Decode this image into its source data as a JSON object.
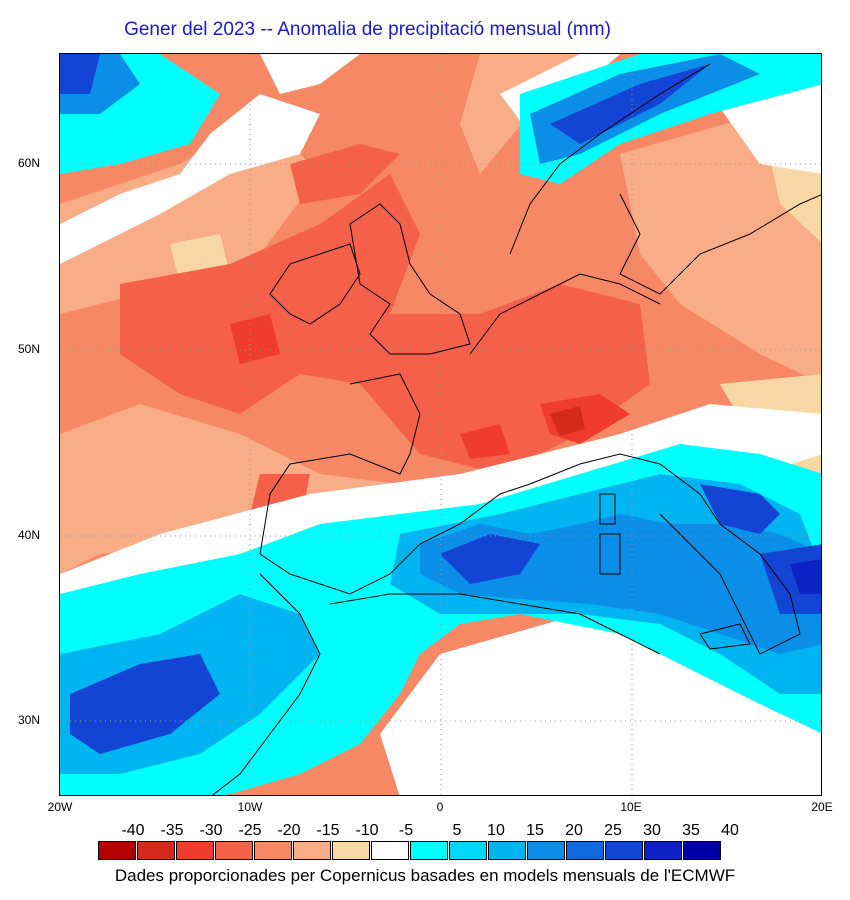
{
  "title": "Gener del 2023 -- Anomalia de precipitació mensual (mm)",
  "credit": "Dades proporcionades per Copernicus basades en models mensuals de l'ECMWF",
  "axes": {
    "lat_labels": [
      "60N",
      "50N",
      "40N",
      "30N"
    ],
    "lon_labels": [
      "20W",
      "10W",
      "0",
      "10E",
      "20E"
    ]
  },
  "legend": {
    "labels": [
      "-40",
      "-35",
      "-30",
      "-25",
      "-20",
      "-15",
      "-10",
      "-5",
      "5",
      "10",
      "15",
      "20",
      "25",
      "30",
      "35",
      "40"
    ],
    "colors": [
      "#b30000",
      "#d42a1e",
      "#f03c2e",
      "#f4604a",
      "#f68866",
      "#f9ad86",
      "#f7d8a4",
      "#ffffff",
      "#00ffff",
      "#00d8f8",
      "#00b4f2",
      "#0a8ee8",
      "#1268de",
      "#1444d4",
      "#0c22c4",
      "#0000a8"
    ]
  },
  "colors": {
    "ocean_dry": "#f68866",
    "wet_blue": "#1444d4",
    "cyan": "#00ffff",
    "title_blue": "#1a1acc"
  }
}
